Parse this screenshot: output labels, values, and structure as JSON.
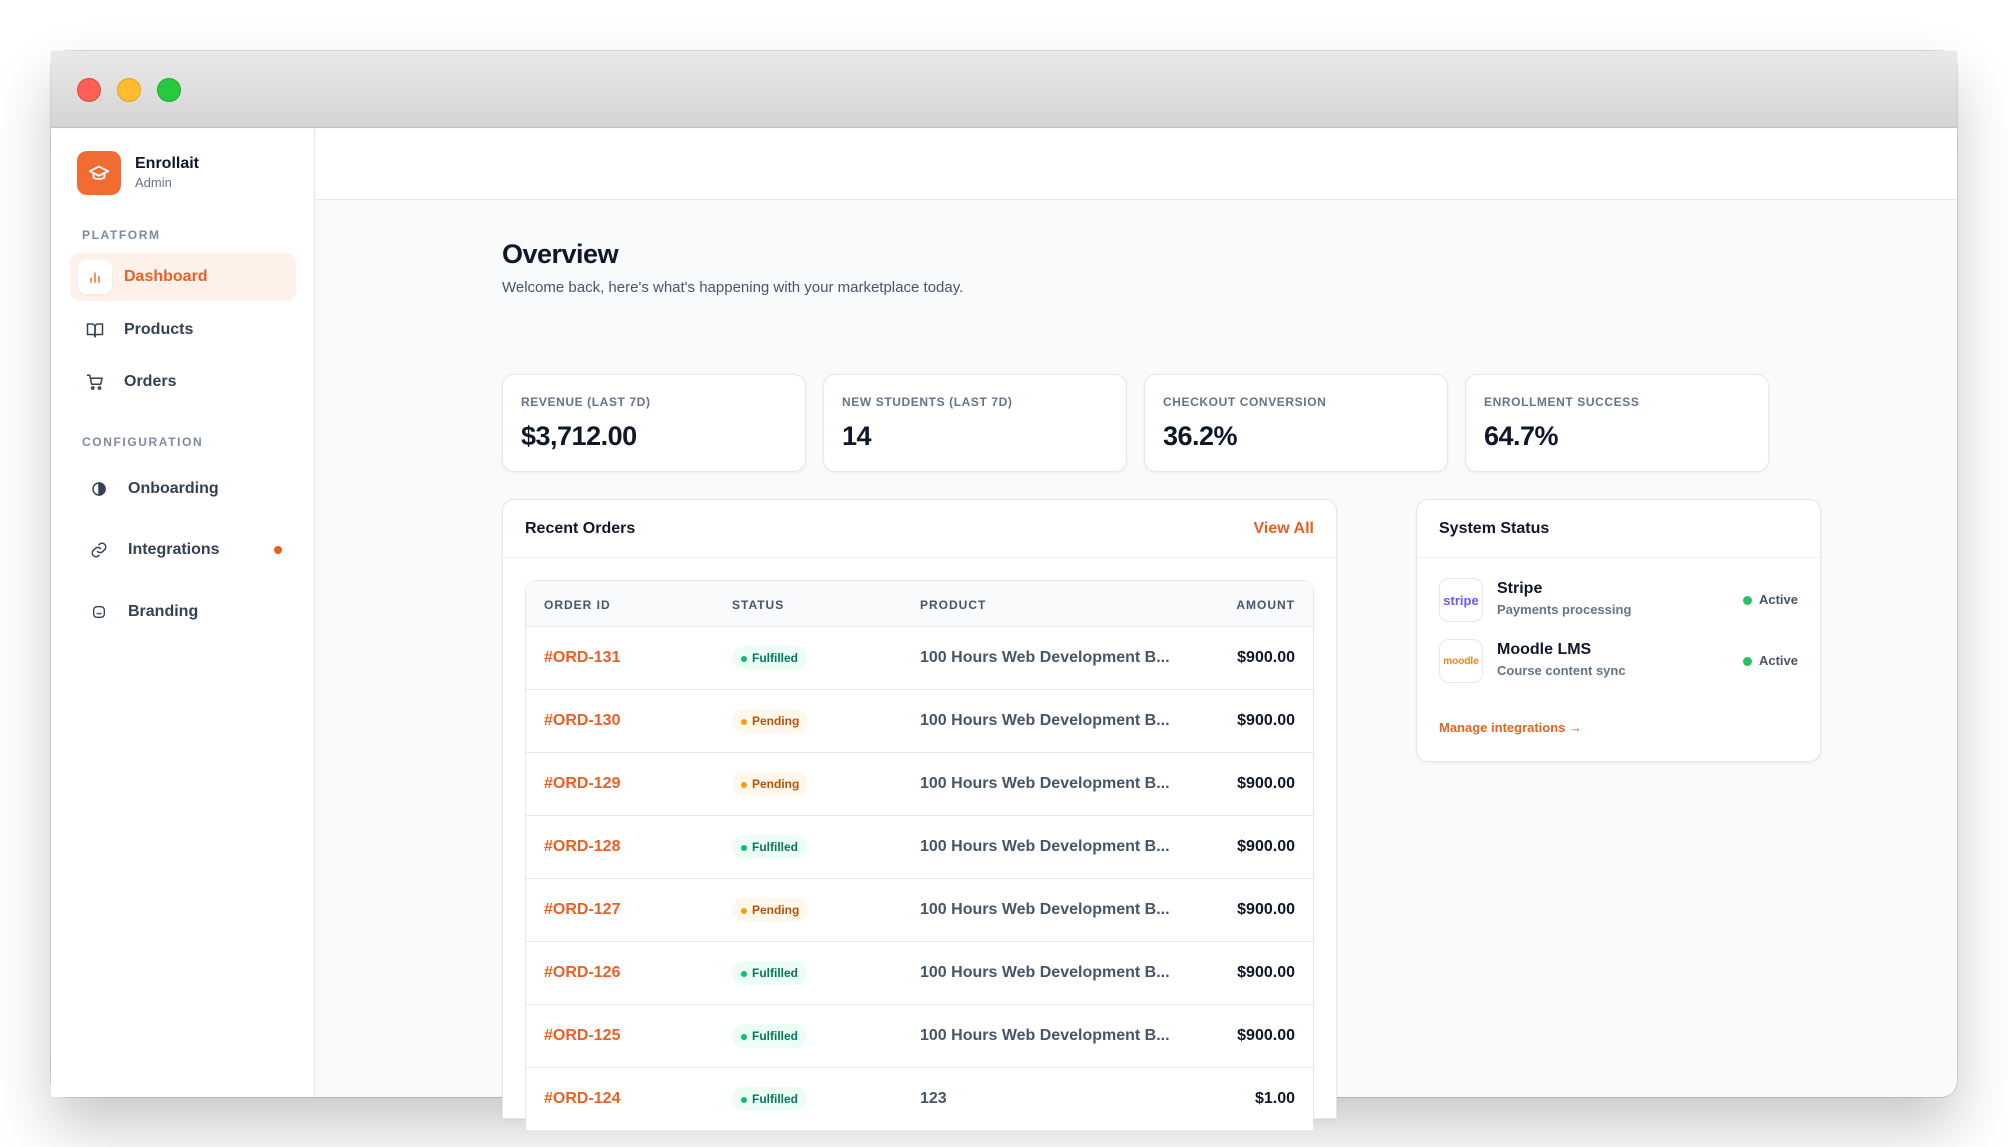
{
  "brand": {
    "name": "Enrollait",
    "role": "Admin"
  },
  "sidebar": {
    "platform_label": "PLATFORM",
    "config_label": "CONFIGURATION",
    "items": [
      {
        "label": "Dashboard",
        "icon": "bar-chart-icon",
        "active": true
      },
      {
        "label": "Products",
        "icon": "book-icon"
      },
      {
        "label": "Orders",
        "icon": "cart-icon"
      },
      {
        "label": "Onboarding",
        "icon": "circle-half-icon"
      },
      {
        "label": "Integrations",
        "icon": "link-icon",
        "badge": true
      },
      {
        "label": "Branding",
        "icon": "palette-icon"
      }
    ]
  },
  "overview": {
    "title": "Overview",
    "subtitle": "Welcome back, here's what's happening with your marketplace today."
  },
  "stats": [
    {
      "label": "REVENUE (LAST 7D)",
      "value": "$3,712.00"
    },
    {
      "label": "NEW STUDENTS (LAST 7D)",
      "value": "14"
    },
    {
      "label": "CHECKOUT CONVERSION",
      "value": "36.2%"
    },
    {
      "label": "ENROLLMENT SUCCESS",
      "value": "64.7%"
    }
  ],
  "orders": {
    "title": "Recent Orders",
    "view_all": "View All",
    "columns": [
      "ORDER ID",
      "STATUS",
      "PRODUCT",
      "AMOUNT"
    ],
    "rows": [
      {
        "id": "#ORD-131",
        "status": "Fulfilled",
        "product": "100 Hours Web Development B...",
        "amount": "$900.00"
      },
      {
        "id": "#ORD-130",
        "status": "Pending",
        "product": "100 Hours Web Development B...",
        "amount": "$900.00"
      },
      {
        "id": "#ORD-129",
        "status": "Pending",
        "product": "100 Hours Web Development B...",
        "amount": "$900.00"
      },
      {
        "id": "#ORD-128",
        "status": "Fulfilled",
        "product": "100 Hours Web Development B...",
        "amount": "$900.00"
      },
      {
        "id": "#ORD-127",
        "status": "Pending",
        "product": "100 Hours Web Development B...",
        "amount": "$900.00"
      },
      {
        "id": "#ORD-126",
        "status": "Fulfilled",
        "product": "100 Hours Web Development B...",
        "amount": "$900.00"
      },
      {
        "id": "#ORD-125",
        "status": "Fulfilled",
        "product": "100 Hours Web Development B...",
        "amount": "$900.00"
      },
      {
        "id": "#ORD-124",
        "status": "Fulfilled",
        "product": "123",
        "amount": "$1.00"
      }
    ]
  },
  "system": {
    "title": "System Status",
    "integrations": [
      {
        "name": "Stripe",
        "desc": "Payments processing",
        "status": "Active",
        "logo_text": "stripe",
        "logo_color": "#635bff"
      },
      {
        "name": "Moodle LMS",
        "desc": "Course content sync",
        "status": "Active",
        "logo_text": "moodle",
        "logo_color": "#f98012"
      }
    ],
    "manage_link": "Manage integrations →"
  },
  "colors": {
    "accent": "#ea5f23",
    "success": "#22c55e",
    "pending": "#f59e0b"
  }
}
